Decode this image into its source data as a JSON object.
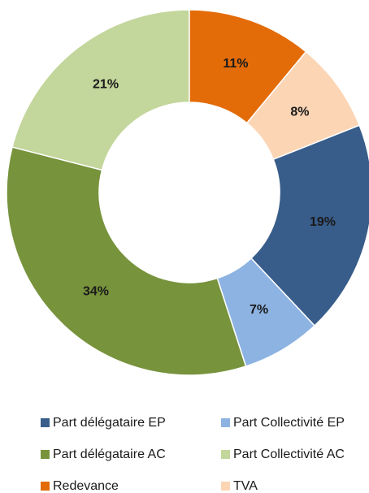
{
  "chart_data": {
    "type": "donut",
    "categories": [
      "Part délégataire EP",
      "Part Collectivité EP",
      "Part délégataire AC",
      "Part Collectivité AC",
      "Redevance",
      "TVA"
    ],
    "values": [
      19,
      7,
      34,
      21,
      11,
      8
    ],
    "value_labels": [
      "19%",
      "7%",
      "34%",
      "21%",
      "11%",
      "8%"
    ],
    "colors": [
      "#385d8a",
      "#8db3e2",
      "#77933c",
      "#c3d69b",
      "#e36c09",
      "#fcd5b5"
    ],
    "start_angle": 68.4,
    "legend": "bottom"
  }
}
